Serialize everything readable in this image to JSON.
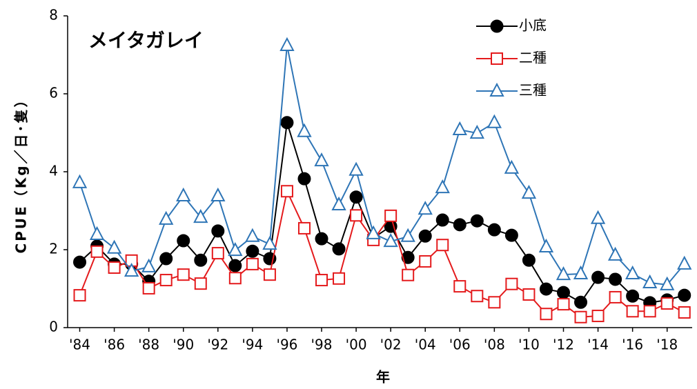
{
  "chart_data": {
    "type": "line",
    "annotation": "メイタガレイ",
    "x_label": "年",
    "y_label": "CPUE（Kg／日･隻）",
    "x": [
      1984,
      1985,
      1986,
      1987,
      1988,
      1989,
      1990,
      1991,
      1992,
      1993,
      1994,
      1995,
      1996,
      1997,
      1998,
      1999,
      2000,
      2001,
      2002,
      2003,
      2004,
      2005,
      2006,
      2007,
      2008,
      2009,
      2010,
      2011,
      2012,
      2013,
      2014,
      2015,
      2016,
      2017,
      2018,
      2019
    ],
    "series": [
      {
        "name": "小底",
        "color": "#000000",
        "marker": "circle",
        "values": [
          1.68,
          2.09,
          1.63,
          1.63,
          1.19,
          1.77,
          2.23,
          1.73,
          2.48,
          1.59,
          1.96,
          1.77,
          5.26,
          3.82,
          2.28,
          2.02,
          3.35,
          2.3,
          2.6,
          1.8,
          2.35,
          2.76,
          2.64,
          2.74,
          2.51,
          2.37,
          1.73,
          0.99,
          0.9,
          0.65,
          1.29,
          1.24,
          0.81,
          0.64,
          0.71,
          0.83
        ]
      },
      {
        "name": "二種",
        "color": "#e41a1c",
        "marker": "square",
        "values": [
          0.83,
          1.95,
          1.54,
          1.72,
          1.01,
          1.22,
          1.36,
          1.13,
          1.91,
          1.27,
          1.63,
          1.36,
          3.5,
          2.55,
          1.22,
          1.26,
          2.88,
          2.25,
          2.87,
          1.35,
          1.7,
          2.12,
          1.06,
          0.81,
          0.65,
          1.12,
          0.85,
          0.35,
          0.6,
          0.27,
          0.3,
          0.78,
          0.42,
          0.42,
          0.62,
          0.39
        ]
      },
      {
        "name": "三種",
        "color": "#2e75b6",
        "marker": "triangle",
        "values": [
          3.72,
          2.39,
          2.04,
          1.45,
          1.56,
          2.78,
          3.38,
          2.83,
          3.38,
          1.98,
          2.34,
          2.14,
          7.24,
          5.03,
          4.28,
          3.15,
          4.04,
          2.41,
          2.21,
          2.34,
          3.04,
          3.59,
          5.08,
          4.99,
          5.26,
          4.09,
          3.45,
          2.07,
          1.36,
          1.38,
          2.8,
          1.86,
          1.38,
          1.15,
          1.1,
          1.63
        ]
      }
    ],
    "xlim": [
      1983.3,
      2019.45
    ],
    "xticks": [
      {
        "value": 1984,
        "label": "'84"
      },
      {
        "value": 1986,
        "label": "'86"
      },
      {
        "value": 1988,
        "label": "'88"
      },
      {
        "value": 1990,
        "label": "'90"
      },
      {
        "value": 1992,
        "label": "'92"
      },
      {
        "value": 1994,
        "label": "'94"
      },
      {
        "value": 1996,
        "label": "'96"
      },
      {
        "value": 1998,
        "label": "'98"
      },
      {
        "value": 2000,
        "label": "'00"
      },
      {
        "value": 2002,
        "label": "'02"
      },
      {
        "value": 2004,
        "label": "'04"
      },
      {
        "value": 2006,
        "label": "'06"
      },
      {
        "value": 2008,
        "label": "'08"
      },
      {
        "value": 2010,
        "label": "'10"
      },
      {
        "value": 2012,
        "label": "'12"
      },
      {
        "value": 2014,
        "label": "'14"
      },
      {
        "value": 2016,
        "label": "'16"
      },
      {
        "value": 2018,
        "label": "'18"
      }
    ],
    "ylim": [
      0,
      8
    ],
    "yticks": [
      0,
      2,
      4,
      6,
      8
    ],
    "grid": false,
    "legend": "top-right"
  }
}
